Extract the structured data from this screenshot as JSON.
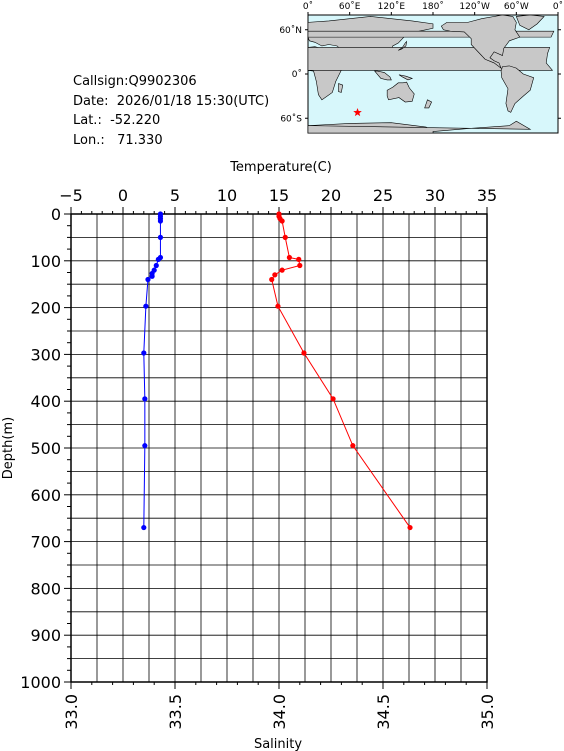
{
  "info": {
    "callsign": "Callsign:Q9902306",
    "date": "Date:  2026/01/18 15:30(UTC)",
    "lat": "Lat.:  -52.220",
    "lon": "Lon.:   71.330"
  },
  "map": {
    "lon_labels": [
      "0˚",
      "60˚E",
      "120˚E",
      "180˚",
      "120˚W",
      "60˚W",
      "0˚"
    ],
    "lat_labels": [
      "60˚N",
      "0˚",
      "60˚S"
    ],
    "station": {
      "lon": 71.33,
      "lat": -52.22
    },
    "colors": {
      "ocean": "#d7f7fb",
      "land": "#c8c8c8",
      "marker": "#ff0000"
    }
  },
  "chart_data": {
    "type": "line",
    "ylabel": "Depth(m)",
    "ylim": [
      1000,
      0
    ],
    "yticks": [
      "0",
      "100",
      "200",
      "300",
      "400",
      "500",
      "600",
      "700",
      "800",
      "900",
      "1000"
    ],
    "grid": true,
    "top_axis": {
      "label": "Temperature(C)",
      "range": [
        -5,
        35
      ],
      "ticks": [
        "−5",
        "0",
        "5",
        "10",
        "15",
        "20",
        "25",
        "30",
        "35"
      ]
    },
    "bottom_axis": {
      "label": "Salinity",
      "range": [
        33.0,
        35.0
      ],
      "ticks": [
        "33.0",
        "33.5",
        "34.0",
        "34.5",
        "35.0"
      ]
    },
    "series": [
      {
        "axis": "top",
        "color": "#ff0000",
        "x": [
          15.0,
          15.0,
          15.1,
          15.3,
          15.6,
          16.0,
          16.9,
          17.0,
          15.3,
          14.6,
          14.3,
          14.9,
          17.4,
          20.2,
          22.1,
          27.6
        ],
        "y": [
          0,
          5,
          10,
          15,
          50,
          93,
          97,
          110,
          120,
          130,
          140,
          197,
          297,
          395,
          495,
          670
        ]
      },
      {
        "axis": "bottom",
        "color": "#0000ff",
        "x": [
          33.43,
          33.43,
          33.43,
          33.43,
          33.43,
          33.43,
          33.42,
          33.41,
          33.4,
          33.39,
          33.39,
          33.37,
          33.36,
          33.35,
          33.355,
          33.355,
          33.35
        ],
        "y": [
          0,
          5,
          10,
          15,
          50,
          93,
          97,
          110,
          120,
          127,
          133,
          140,
          197,
          297,
          395,
          495,
          670
        ]
      }
    ]
  }
}
